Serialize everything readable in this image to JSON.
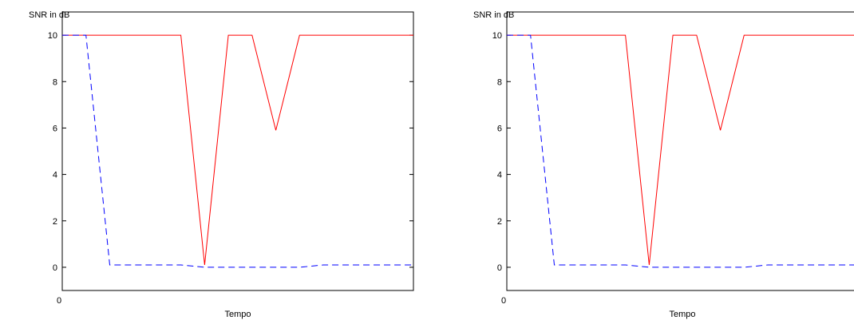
{
  "chart_data": [
    {
      "type": "line",
      "ylabel": "SNR in dB",
      "xlabel": "Tempo",
      "xticks": [
        "0"
      ],
      "yticks": [
        "0",
        "2",
        "4",
        "6",
        "8",
        "10"
      ],
      "ylim": [
        -1,
        11
      ],
      "xlim": [
        0,
        14.8
      ],
      "grid": false,
      "x": [
        0,
        1,
        2,
        3,
        4,
        5,
        6,
        7,
        8,
        9,
        10,
        11,
        12,
        13,
        14,
        14.8
      ],
      "series": [
        {
          "values": [
            10,
            10,
            10,
            10,
            10,
            10,
            0.1,
            10,
            10,
            5.9,
            10,
            10,
            10,
            10,
            10,
            10
          ],
          "color": "#ff0000",
          "style": "solid"
        },
        {
          "values": [
            10,
            10,
            0.1,
            0.1,
            0.1,
            0.1,
            0,
            0,
            0,
            0,
            0,
            0.1,
            0.1,
            0.1,
            0.1,
            0.1
          ],
          "color": "#0000ff",
          "style": "dashed"
        }
      ]
    },
    {
      "type": "line",
      "ylabel": "SNR in dB",
      "xlabel": "Tempo",
      "xticks": [
        "0"
      ],
      "yticks": [
        "0",
        "2",
        "4",
        "6",
        "8",
        "10"
      ],
      "ylim": [
        -1,
        11
      ],
      "xlim": [
        0,
        14.8
      ],
      "grid": false,
      "x": [
        0,
        1,
        2,
        3,
        4,
        5,
        6,
        7,
        8,
        9,
        10,
        11,
        12,
        13,
        14,
        14.8
      ],
      "series": [
        {
          "values": [
            10,
            10,
            10,
            10,
            10,
            10,
            0.1,
            10,
            10,
            5.9,
            10,
            10,
            10,
            10,
            10,
            10
          ],
          "color": "#ff0000",
          "style": "solid"
        },
        {
          "values": [
            10,
            10,
            0.1,
            0.1,
            0.1,
            0.1,
            0,
            0,
            0,
            0,
            0,
            0.1,
            0.1,
            0.1,
            0.1,
            0.1
          ],
          "color": "#0000ff",
          "style": "dashed"
        }
      ]
    }
  ]
}
